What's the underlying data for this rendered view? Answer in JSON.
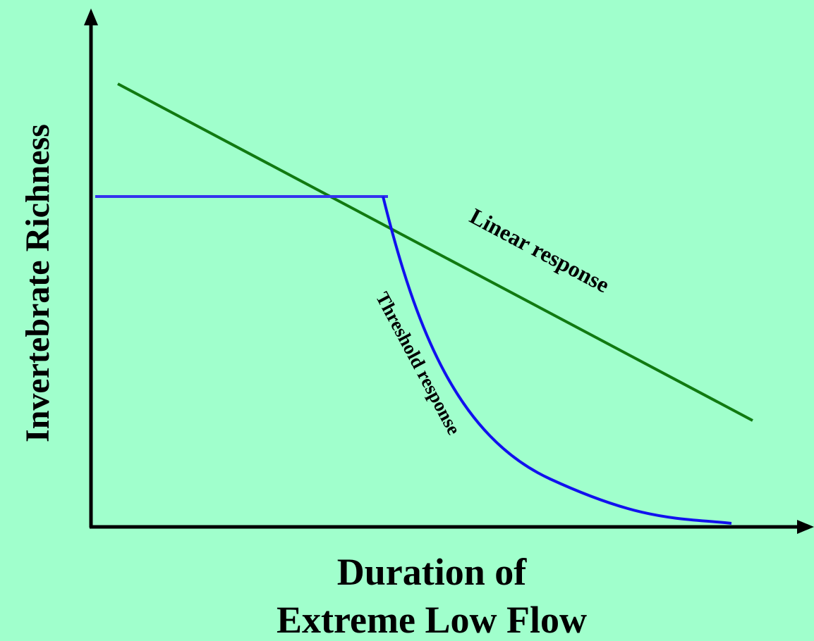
{
  "y_axis_label": "Invertebrate Richness",
  "x_axis_label": [
    "Duration of",
    "Extreme Low Flow"
  ],
  "curves": [
    {
      "label": "Linear response"
    },
    {
      "label": "Threshold response"
    }
  ]
}
